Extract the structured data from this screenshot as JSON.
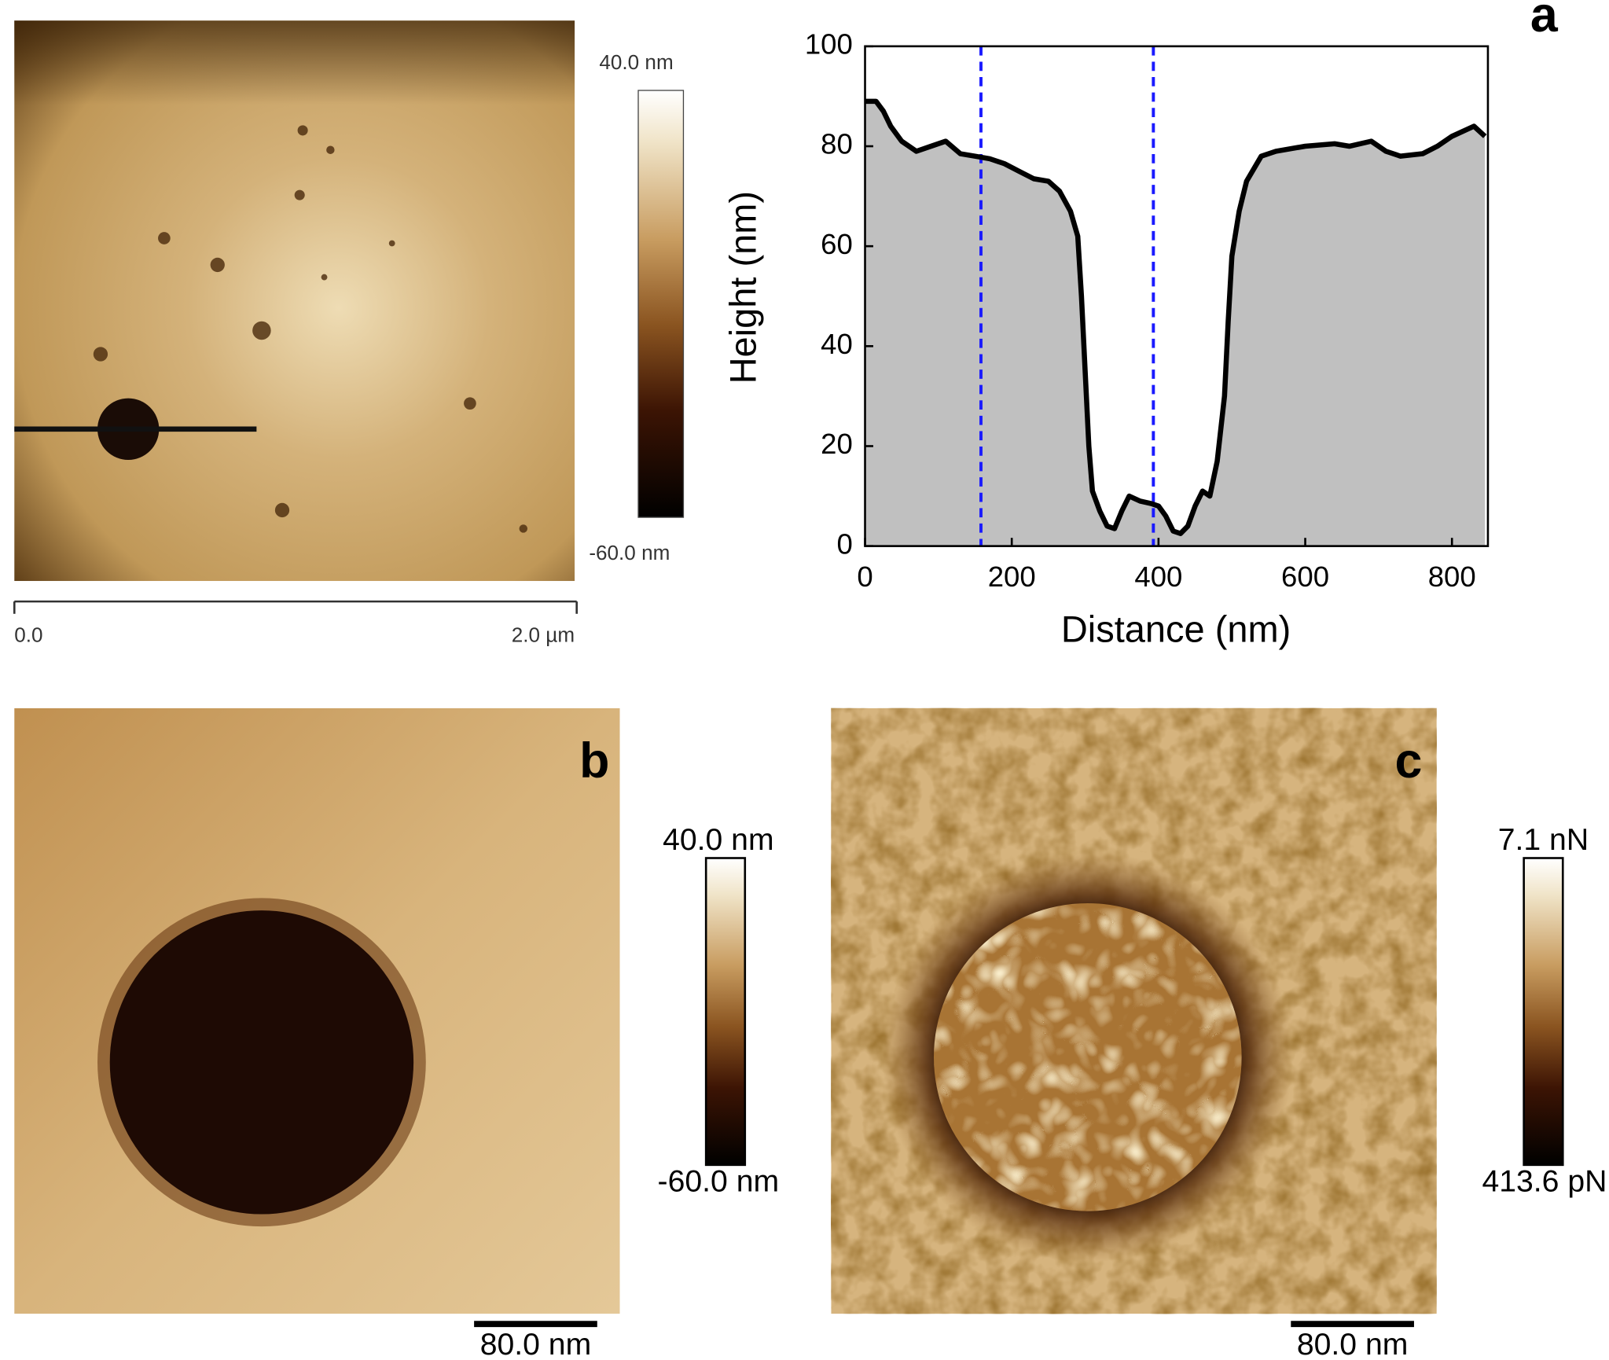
{
  "chart_data": {
    "type": "area",
    "panel_label": "a",
    "xlabel": "Distance (nm)",
    "ylabel": "Height (nm)",
    "x": [
      0,
      15,
      25,
      35,
      50,
      70,
      90,
      110,
      130,
      150,
      170,
      190,
      210,
      230,
      250,
      265,
      280,
      290,
      295,
      300,
      305,
      310,
      320,
      330,
      340,
      350,
      360,
      375,
      390,
      400,
      410,
      420,
      430,
      440,
      450,
      460,
      470,
      480,
      490,
      495,
      500,
      510,
      520,
      540,
      560,
      600,
      640,
      660,
      690,
      710,
      730,
      760,
      780,
      800,
      830,
      845
    ],
    "values": [
      89,
      89,
      87,
      84,
      81,
      79,
      80,
      81,
      78.5,
      78,
      77.5,
      76.5,
      75,
      73.5,
      73,
      71,
      67,
      62,
      50,
      35,
      20,
      11,
      7,
      4,
      3.5,
      7,
      10,
      9,
      8.5,
      8,
      6,
      3,
      2.5,
      4,
      8,
      11,
      10,
      17,
      30,
      45,
      58,
      67,
      73,
      78,
      79,
      80,
      80.5,
      80,
      81,
      79,
      78,
      78.5,
      80,
      82,
      84,
      82
    ],
    "color": "#000000",
    "fill": "#c0c0c0",
    "vlines": {
      "values": [
        158,
        393
      ],
      "color": "#1a1aff"
    },
    "xlim": [
      0,
      849
    ],
    "ylim": [
      0,
      100
    ],
    "xticks": [
      0,
      200,
      400,
      600,
      800
    ],
    "yticks": [
      0,
      20,
      40,
      60,
      80,
      100
    ]
  },
  "images": {
    "a": {
      "colorbar_max": "40.0 nm",
      "colorbar_min": "-60.0 nm",
      "scale_start": "0.0",
      "scale_end": "2.0 µm"
    },
    "b": {
      "label": "b",
      "colorbar_max": "40.0 nm",
      "colorbar_min": "-60.0 nm",
      "scale_bar": "80.0 nm"
    },
    "c": {
      "label": "c",
      "colorbar_max": "7.1 nN",
      "colorbar_min": "413.6 pN",
      "scale_bar": "80.0 nm"
    }
  }
}
